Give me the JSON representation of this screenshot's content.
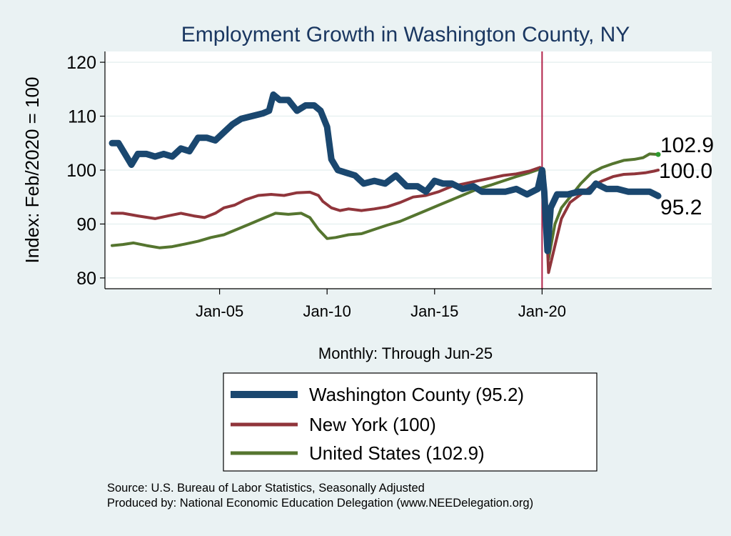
{
  "chart_data": {
    "type": "line",
    "title": "Employment Growth in Washington  County, NY",
    "ylabel": "Index: Feb/2020 = 100",
    "xlabel": "Monthly: Through Jun-25",
    "ylim": [
      78,
      122
    ],
    "yticks": [
      80,
      90,
      100,
      110,
      120
    ],
    "x_start": 2000.0,
    "x_end": 2028.0,
    "xticks": [
      {
        "label": "Jan-05",
        "value": 2005.0
      },
      {
        "label": "Jan-10",
        "value": 2010.0
      },
      {
        "label": "Jan-15",
        "value": 2015.0
      },
      {
        "label": "Jan-20",
        "value": 2020.0
      }
    ],
    "vline": 2020.0,
    "grid": true,
    "series": [
      {
        "name": "Washington  County",
        "legend": "Washington  County (95.2)",
        "end_label": "95.2",
        "color": "#1a476f",
        "width": 9,
        "points": [
          [
            2000.0,
            105
          ],
          [
            2000.3,
            105
          ],
          [
            2000.6,
            103
          ],
          [
            2000.9,
            101
          ],
          [
            2001.2,
            103
          ],
          [
            2001.6,
            103
          ],
          [
            2002.0,
            102.5
          ],
          [
            2002.4,
            103
          ],
          [
            2002.8,
            102.5
          ],
          [
            2003.2,
            104
          ],
          [
            2003.6,
            103.5
          ],
          [
            2004.0,
            106
          ],
          [
            2004.4,
            106
          ],
          [
            2004.8,
            105.5
          ],
          [
            2005.2,
            107
          ],
          [
            2005.6,
            108.5
          ],
          [
            2006.0,
            109.5
          ],
          [
            2006.5,
            110
          ],
          [
            2007.0,
            110.5
          ],
          [
            2007.3,
            111
          ],
          [
            2007.5,
            114
          ],
          [
            2007.8,
            113
          ],
          [
            2008.2,
            113
          ],
          [
            2008.6,
            111
          ],
          [
            2009.0,
            112
          ],
          [
            2009.4,
            112
          ],
          [
            2009.7,
            111
          ],
          [
            2010.0,
            108
          ],
          [
            2010.2,
            102
          ],
          [
            2010.5,
            100
          ],
          [
            2010.9,
            99.5
          ],
          [
            2011.3,
            99
          ],
          [
            2011.7,
            97.5
          ],
          [
            2012.2,
            98
          ],
          [
            2012.7,
            97.5
          ],
          [
            2013.2,
            99
          ],
          [
            2013.7,
            97
          ],
          [
            2014.2,
            97
          ],
          [
            2014.6,
            96
          ],
          [
            2015.0,
            98
          ],
          [
            2015.4,
            97.5
          ],
          [
            2015.8,
            97.5
          ],
          [
            2016.3,
            96.5
          ],
          [
            2016.8,
            97
          ],
          [
            2017.2,
            96
          ],
          [
            2017.8,
            96
          ],
          [
            2018.3,
            96
          ],
          [
            2018.8,
            96.5
          ],
          [
            2019.3,
            95.5
          ],
          [
            2019.8,
            96.5
          ],
          [
            2020.0,
            100
          ],
          [
            2020.1,
            96
          ],
          [
            2020.25,
            85
          ],
          [
            2020.4,
            93
          ],
          [
            2020.7,
            95.5
          ],
          [
            2021.2,
            95.5
          ],
          [
            2021.7,
            96
          ],
          [
            2022.2,
            96
          ],
          [
            2022.5,
            97.5
          ],
          [
            2023.0,
            96.5
          ],
          [
            2023.5,
            96.5
          ],
          [
            2024.0,
            96
          ],
          [
            2024.5,
            96
          ],
          [
            2025.0,
            96
          ],
          [
            2025.4,
            95.2
          ]
        ]
      },
      {
        "name": "New York",
        "legend": "New York (100)",
        "end_label": "100.0",
        "color": "#90353b",
        "width": 4,
        "points": [
          [
            2000.0,
            92
          ],
          [
            2000.5,
            92
          ],
          [
            2001.2,
            91.5
          ],
          [
            2002.0,
            91
          ],
          [
            2002.6,
            91.5
          ],
          [
            2003.2,
            92
          ],
          [
            2003.8,
            91.5
          ],
          [
            2004.3,
            91.2
          ],
          [
            2004.8,
            92
          ],
          [
            2005.2,
            93
          ],
          [
            2005.7,
            93.5
          ],
          [
            2006.2,
            94.5
          ],
          [
            2006.8,
            95.3
          ],
          [
            2007.4,
            95.5
          ],
          [
            2008.0,
            95.3
          ],
          [
            2008.6,
            95.8
          ],
          [
            2009.2,
            95.9
          ],
          [
            2009.6,
            95.3
          ],
          [
            2009.8,
            94.2
          ],
          [
            2010.2,
            93
          ],
          [
            2010.6,
            92.5
          ],
          [
            2011.0,
            92.8
          ],
          [
            2011.6,
            92.5
          ],
          [
            2012.2,
            92.8
          ],
          [
            2012.8,
            93.2
          ],
          [
            2013.4,
            94
          ],
          [
            2014.0,
            95
          ],
          [
            2014.6,
            95.3
          ],
          [
            2015.2,
            96
          ],
          [
            2015.8,
            97
          ],
          [
            2016.4,
            97.5
          ],
          [
            2017.0,
            98
          ],
          [
            2017.6,
            98.5
          ],
          [
            2018.2,
            99
          ],
          [
            2018.8,
            99.3
          ],
          [
            2019.4,
            99.8
          ],
          [
            2019.9,
            100.5
          ],
          [
            2020.1,
            99.5
          ],
          [
            2020.3,
            81
          ],
          [
            2020.6,
            86
          ],
          [
            2020.9,
            91
          ],
          [
            2021.3,
            94
          ],
          [
            2021.8,
            95.5
          ],
          [
            2022.3,
            97
          ],
          [
            2022.8,
            98
          ],
          [
            2023.3,
            98.8
          ],
          [
            2023.8,
            99.2
          ],
          [
            2024.3,
            99.3
          ],
          [
            2024.8,
            99.5
          ],
          [
            2025.2,
            99.8
          ],
          [
            2025.4,
            100
          ]
        ]
      },
      {
        "name": "United States",
        "legend": "United States (102.9)",
        "end_label": "102.9",
        "color": "#55752f",
        "width": 4,
        "points": [
          [
            2000.0,
            86
          ],
          [
            2000.5,
            86.2
          ],
          [
            2001.0,
            86.5
          ],
          [
            2001.6,
            86
          ],
          [
            2002.2,
            85.6
          ],
          [
            2002.8,
            85.8
          ],
          [
            2003.4,
            86.3
          ],
          [
            2004.0,
            86.8
          ],
          [
            2004.6,
            87.5
          ],
          [
            2005.2,
            88
          ],
          [
            2005.8,
            89
          ],
          [
            2006.4,
            90
          ],
          [
            2007.0,
            91
          ],
          [
            2007.6,
            92
          ],
          [
            2008.2,
            91.8
          ],
          [
            2008.8,
            92
          ],
          [
            2009.2,
            91.2
          ],
          [
            2009.6,
            89
          ],
          [
            2010.0,
            87.3
          ],
          [
            2010.4,
            87.5
          ],
          [
            2011.0,
            88
          ],
          [
            2011.6,
            88.2
          ],
          [
            2012.2,
            89
          ],
          [
            2012.8,
            89.8
          ],
          [
            2013.4,
            90.5
          ],
          [
            2014.0,
            91.5
          ],
          [
            2014.6,
            92.5
          ],
          [
            2015.2,
            93.5
          ],
          [
            2015.8,
            94.5
          ],
          [
            2016.4,
            95.5
          ],
          [
            2017.0,
            96.5
          ],
          [
            2017.6,
            97.2
          ],
          [
            2018.2,
            98
          ],
          [
            2018.8,
            98.8
          ],
          [
            2019.4,
            99.5
          ],
          [
            2019.9,
            100.2
          ],
          [
            2020.1,
            99.8
          ],
          [
            2020.3,
            83.5
          ],
          [
            2020.6,
            90
          ],
          [
            2020.9,
            93
          ],
          [
            2021.3,
            95
          ],
          [
            2021.8,
            97.5
          ],
          [
            2022.3,
            99.5
          ],
          [
            2022.8,
            100.5
          ],
          [
            2023.3,
            101.2
          ],
          [
            2023.8,
            101.8
          ],
          [
            2024.3,
            102
          ],
          [
            2024.7,
            102.3
          ],
          [
            2025.0,
            103
          ],
          [
            2025.4,
            102.9
          ]
        ]
      }
    ]
  },
  "source_text": "Source: U.S. Bureau of Labor Statistics, Seasonally Adjusted",
  "produced_text": "Produced by: National Economic Education Delegation (www.NEEDelegation.org)",
  "colors": {
    "background": "#eaf2f3",
    "plot_background": "#ffffff",
    "grid": "#e8f1f1",
    "vline": "#b2234a",
    "title": "#1a3761",
    "endpoint_marker": "#2e9a2e"
  }
}
